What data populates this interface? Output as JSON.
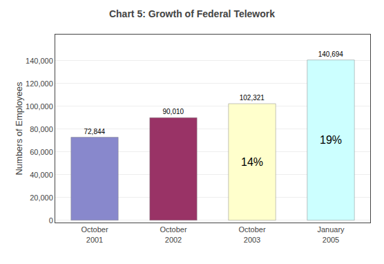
{
  "chart_data": {
    "type": "bar",
    "title": "Chart 5: Growth of Federal Telework",
    "ylabel": "Numbers of Employees",
    "categories": [
      "October\n2001",
      "October\n2002",
      "October\n2003",
      "January\n2005"
    ],
    "values": [
      72844,
      90010,
      102321,
      140694
    ],
    "value_labels": [
      "72,844",
      "90,010",
      "102,321",
      "140,694"
    ],
    "data_labels": true,
    "colors": [
      "#8888cc",
      "#993366",
      "#ffffcc",
      "#ccffff"
    ],
    "annotations": [
      {
        "text": "14%",
        "category": "October\n2003"
      },
      {
        "text": "19%",
        "category": "January\n2005"
      }
    ],
    "ylim": [
      -2000,
      163000
    ],
    "yticks": [
      0,
      {
        "value": 20000,
        "label": "20,000"
      },
      {
        "value": 40000,
        "label": "40,000"
      },
      {
        "value": 60000,
        "label": "60,000"
      },
      {
        "value": 80000,
        "label": "80,000"
      },
      {
        "value": 100000,
        "label": "100,000"
      },
      {
        "value": 120000,
        "label": "120,000"
      },
      {
        "value": 140000,
        "label": "140,000"
      }
    ],
    "grid": true
  }
}
